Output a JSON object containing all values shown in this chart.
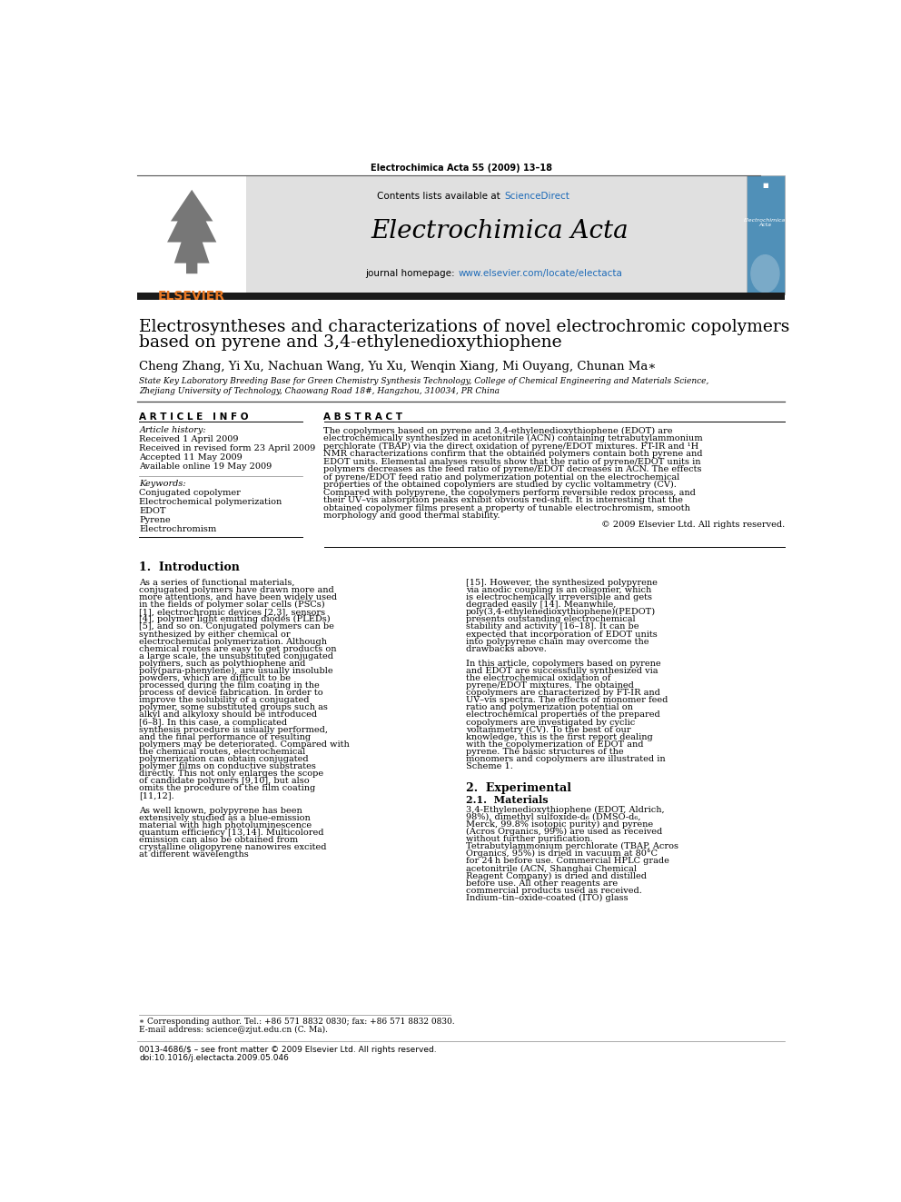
{
  "journal_header": "Electrochimica Acta 55 (2009) 13–18",
  "journal_name": "Electrochimica Acta",
  "contents_text_before": "Contents lists available at ",
  "contents_text_link": "ScienceDirect",
  "journal_url_before": "journal homepage: ",
  "journal_url_link": "www.elsevier.com/locate/electacta",
  "paper_title_line1": "Electrosyntheses and characterizations of novel electrochromic copolymers",
  "paper_title_line2": "based on pyrene and 3,4-ethylenedioxythiophene",
  "authors": "Cheng Zhang, Yi Xu, Nachuan Wang, Yu Xu, Wenqin Xiang, Mi Ouyang, Chunan Ma",
  "author_star": "∗",
  "affiliation1": "State Key Laboratory Breeding Base for Green Chemistry Synthesis Technology, College of Chemical Engineering and Materials Science,",
  "affiliation2": "Zhejiang University of Technology, Chaowang Road 18#, Hangzhou, 310034, PR China",
  "article_info_header": "A R T I C L E   I N F O",
  "abstract_header": "A B S T R A C T",
  "article_history_label": "Article history:",
  "received": "Received 1 April 2009",
  "revised": "Received in revised form 23 April 2009",
  "accepted": "Accepted 11 May 2009",
  "available": "Available online 19 May 2009",
  "keywords_label": "Keywords:",
  "keywords": [
    "Conjugated copolymer",
    "Electrochemical polymerization",
    "EDOT",
    "Pyrene",
    "Electrochromism"
  ],
  "abstract_text": "The copolymers based on pyrene and 3,4-ethylenedioxythiophene (EDOT) are electrochemically synthesized in acetonitrile (ACN) containing tetrabutylammonium perchlorate (TBAP) via the direct oxidation of pyrene/EDOT mixtures. FT-IR and ¹H NMR characterizations confirm that the obtained polymers contain both pyrene and EDOT units. Elemental analyses results show that the ratio of pyrene/EDOT units in polymers decreases as the feed ratio of pyrene/EDOT decreases in ACN. The effects of pyrene/EDOT feed ratio and polymerization potential on the electrochemical properties of the obtained copolymers are studied by cyclic voltammetry (CV). Compared with polypyrene, the copolymers perform reversible redox process, and their UV–vis absorption peaks exhibit obvious red-shift. It is interesting that the obtained copolymer films present a property of tunable electrochromism, smooth morphology and good thermal stability.",
  "abstract_copyright": "© 2009 Elsevier Ltd. All rights reserved.",
  "intro_header": "1.  Introduction",
  "intro_col1_p1": "    As a series of functional materials, conjugated polymers have drawn more and more attentions, and have been widely used in the fields of polymer solar cells (PSCs) [1], electrochromic devices [2,3], sensors [4], polymer light emitting diodes (PLEDs) [5], and so on. Conjugated polymers can be synthesized by either chemical or electrochemical polymerization. Although chemical routes are easy to get products on a large scale, the unsubstituted conjugated polymers, such as polythiophene and poly(para-phenylene), are usually insoluble powders, which are difficult to be processed during the film coating in the process of device fabrication. In order to improve the solubility of a conjugated polymer, some substituted groups such as alkyl and alkyloxy should be introduced [6–8]. In this case, a complicated synthesis procedure is usually performed, and the final performance of resulting polymers may be deteriorated. Compared with the chemical routes, electrochemical polymerization can obtain conjugated polymer films on conductive substrates directly. This not only enlarges the scope of candidate polymers [9,10], but also omits the procedure of the film coating [11,12].",
  "intro_col1_p2": "    As well known, polypyrene has been extensively studied as a blue-emission material with high photoluminescence quantum efficiency [13,14]. Multicolored emission can also be obtained from crystalline oligopyrene nanowires excited at different wavelengths",
  "intro_col2_p1": "[15]. However, the synthesized polypyrene via anodic coupling is an oligomer, which is electrochemically irreversible and gets degraded easily [14]. Meanwhile, poly(3,4-ethylenedioxythiophene)(PEDOT) presents outstanding electrochemical stability and activity [16–18]. It can be expected that incorporation of EDOT units into polypyrene chain may overcome the drawbacks above.",
  "intro_col2_p2": "    In this article, copolymers based on pyrene and EDOT are successfully synthesized via the electrochemical oxidation of pyrene/EDOT mixtures. The obtained copolymers are characterized by FT-IR and UV–vis spectra. The effects of monomer feed ratio and polymerization potential on electrochemical properties of the prepared copolymers are investigated by cyclic voltammetry (CV). To the best of our knowledge, this is the first report dealing with the copolymerization of EDOT and pyrene. The basic structures of the monomers and copolymers are illustrated in Scheme 1.",
  "section2_header": "2.  Experimental",
  "section21_header": "2.1.  Materials",
  "materials_text": "    3,4-Ethylenedioxythiophene (EDOT, Aldrich, 98%), dimethyl sulfoxide-d₆ (DMSO-d₆, Merck, 99.8% isotopic purity) and pyrene (Acros Organics, 99%) are used as received without further purification. Tetrabutylammonium perchlorate (TBAP, Acros Organics, 95%) is dried in vacuum at 80°C for 24 h before use. Commercial HPLC grade acetonitrile (ACN, Shanghai Chemical Reagent Company) is dried and distilled before use. All other reagents are commercial products used as received. Indium–tin–oxide-coated (ITO) glass",
  "footnote_star": "∗ Corresponding author. Tel.: +86 571 8832 0830; fax: +86 571 8832 0830.",
  "footnote_email": "E-mail address: science@zjut.edu.cn (C. Ma).",
  "footer_issn": "0013-4686/$ – see front matter © 2009 Elsevier Ltd. All rights reserved.",
  "footer_doi": "doi:10.1016/j.electacta.2009.05.046",
  "bg_header": "#e0e0e0",
  "color_link": "#1E6BB8",
  "color_orange": "#E87722"
}
